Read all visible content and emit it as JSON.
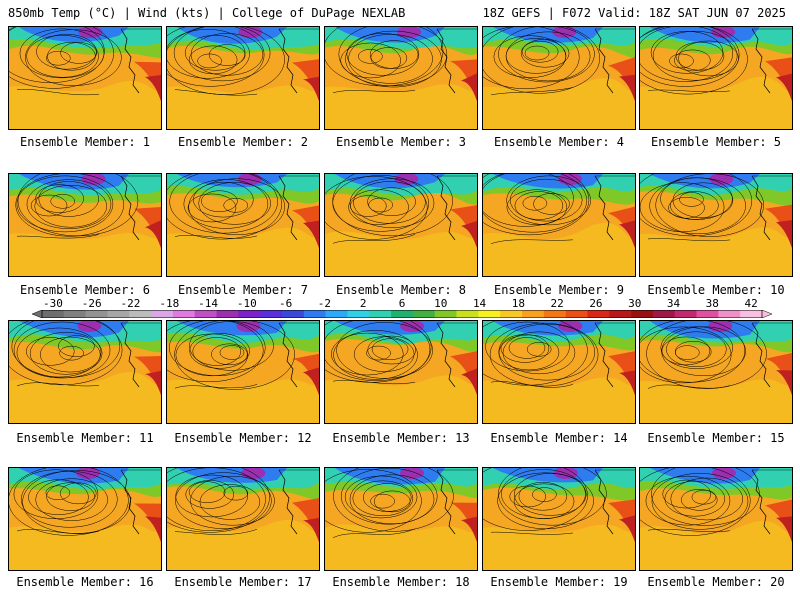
{
  "header": {
    "left": "850mb Temp (°C) | Wind (kts) | College of DuPage NEXLAB",
    "right": "18Z GEFS | F072 Valid: 18Z SAT JUN 07 2025"
  },
  "members": [
    "Ensemble Member: 1",
    "Ensemble Member: 2",
    "Ensemble Member: 3",
    "Ensemble Member: 4",
    "Ensemble Member: 5",
    "Ensemble Member: 6",
    "Ensemble Member: 7",
    "Ensemble Member: 8",
    "Ensemble Member: 9",
    "Ensemble Member: 10",
    "Ensemble Member: 11",
    "Ensemble Member: 12",
    "Ensemble Member: 13",
    "Ensemble Member: 14",
    "Ensemble Member: 15",
    "Ensemble Member: 16",
    "Ensemble Member: 17",
    "Ensemble Member: 18",
    "Ensemble Member: 19",
    "Ensemble Member: 20"
  ],
  "colorbar": {
    "labels": [
      "-30",
      "-26",
      "-22",
      "-18",
      "-14",
      "-10",
      "-6",
      "-2",
      "2",
      "6",
      "10",
      "14",
      "18",
      "22",
      "26",
      "30",
      "34",
      "38",
      "42"
    ],
    "colors": [
      "#6e6e6e",
      "#808080",
      "#939393",
      "#a6a6a6",
      "#bcbcbc",
      "#d9a6e6",
      "#e07ae0",
      "#c04ec4",
      "#9a2fb0",
      "#7a22c8",
      "#5a2ed8",
      "#3a4ad8",
      "#2e7cf0",
      "#2ea8f8",
      "#30d0e8",
      "#30d0b0",
      "#20b070",
      "#40b040",
      "#80c828",
      "#c8e020",
      "#f8f020",
      "#f8c828",
      "#f8a020",
      "#f07818",
      "#e85018",
      "#d82818",
      "#b81818",
      "#981010",
      "#a01848",
      "#c02870",
      "#e050a0",
      "#f090c8",
      "#f8c0e0"
    ]
  },
  "palette": {
    "cold": "#9a2fb0",
    "cool": "#2e7cf0",
    "mid": "#30d0b0",
    "green": "#80c828",
    "yellow": "#f8e020",
    "warm": "#f5a623",
    "hot": "#e85018",
    "veryhot": "#c02020"
  }
}
